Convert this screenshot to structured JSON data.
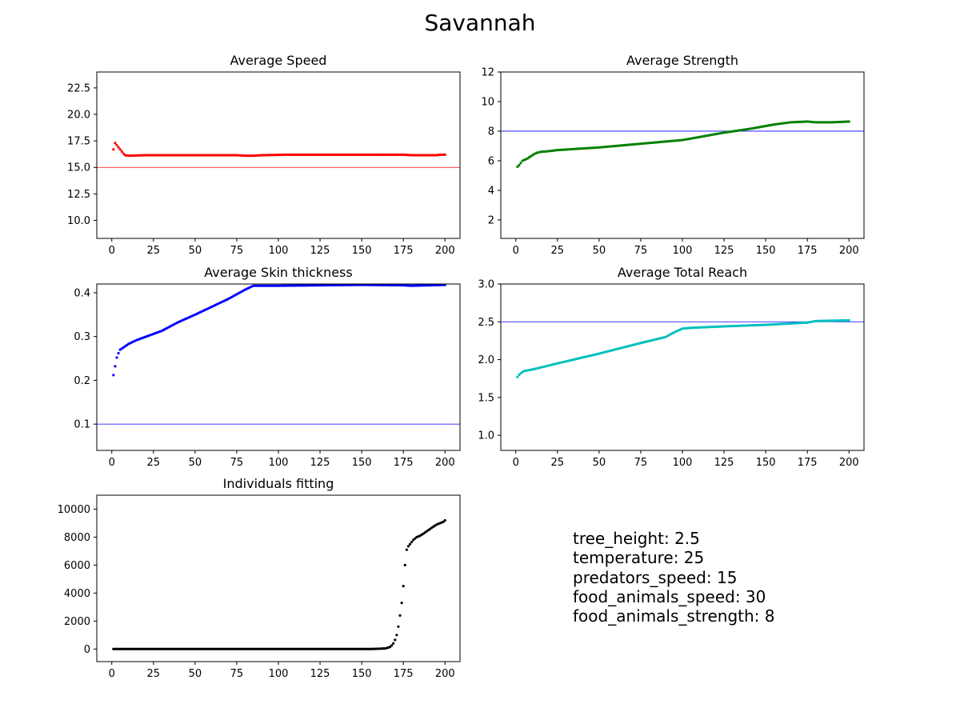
{
  "figure": {
    "title": "Savannah"
  },
  "params": [
    "tree_height: 2.5",
    "temperature: 25",
    "predators_speed: 15",
    "food_animals_speed: 30",
    "food_animals_strength: 8"
  ],
  "colors": {
    "speed": "#ff0000",
    "strength": "#008000",
    "skin": "#0000ff",
    "reach": "#00bfbf",
    "fitting": "#000000",
    "threshold_speed": "#ff0000",
    "threshold_other": "#0000ff"
  },
  "chart_data": [
    {
      "id": "speed",
      "type": "scatter",
      "title": "Average Speed",
      "xlim": [
        -9,
        209
      ],
      "ylim": [
        8.3,
        24.0
      ],
      "xticks": [
        0,
        25,
        50,
        75,
        100,
        125,
        150,
        175,
        200
      ],
      "yticks": [
        10.0,
        12.5,
        15.0,
        17.5,
        20.0,
        22.5
      ],
      "ytick_decimals": 1,
      "hline": 15.0,
      "series": [
        {
          "color": "#ff0000",
          "points": [
            [
              1,
              16.7
            ],
            [
              2,
              17.3
            ],
            [
              3,
              17.1
            ],
            [
              4,
              16.9
            ],
            [
              5,
              16.7
            ],
            [
              6,
              16.5
            ],
            [
              7,
              16.3
            ],
            [
              8,
              16.15
            ],
            [
              10,
              16.1
            ],
            [
              20,
              16.15
            ],
            [
              50,
              16.15
            ],
            [
              75,
              16.15
            ],
            [
              80,
              16.1
            ],
            [
              85,
              16.1
            ],
            [
              90,
              16.15
            ],
            [
              105,
              16.2
            ],
            [
              125,
              16.2
            ],
            [
              150,
              16.2
            ],
            [
              175,
              16.2
            ],
            [
              180,
              16.15
            ],
            [
              195,
              16.15
            ],
            [
              197,
              16.2
            ],
            [
              200,
              16.2
            ]
          ]
        }
      ]
    },
    {
      "id": "strength",
      "type": "scatter",
      "title": "Average Strength",
      "xlim": [
        -9,
        209
      ],
      "ylim": [
        0.75,
        12.0
      ],
      "xticks": [
        0,
        25,
        50,
        75,
        100,
        125,
        150,
        175,
        200
      ],
      "yticks": [
        2,
        4,
        6,
        8,
        10,
        12
      ],
      "ytick_decimals": 0,
      "hline": 8,
      "series": [
        {
          "color": "#008000",
          "points": [
            [
              1,
              5.6
            ],
            [
              2,
              5.7
            ],
            [
              3,
              5.85
            ],
            [
              4,
              6.0
            ],
            [
              5,
              6.05
            ],
            [
              7,
              6.15
            ],
            [
              9,
              6.3
            ],
            [
              11,
              6.45
            ],
            [
              13,
              6.55
            ],
            [
              15,
              6.6
            ],
            [
              20,
              6.65
            ],
            [
              25,
              6.72
            ],
            [
              50,
              6.9
            ],
            [
              75,
              7.15
            ],
            [
              90,
              7.3
            ],
            [
              100,
              7.4
            ],
            [
              110,
              7.6
            ],
            [
              125,
              7.9
            ],
            [
              140,
              8.15
            ],
            [
              155,
              8.45
            ],
            [
              165,
              8.6
            ],
            [
              175,
              8.65
            ],
            [
              180,
              8.6
            ],
            [
              190,
              8.6
            ],
            [
              200,
              8.65
            ]
          ]
        }
      ]
    },
    {
      "id": "skin",
      "type": "scatter",
      "title": "Average Skin thickness",
      "xlim": [
        -9,
        209
      ],
      "ylim": [
        0.04,
        0.42
      ],
      "xticks": [
        0,
        25,
        50,
        75,
        100,
        125,
        150,
        175,
        200
      ],
      "yticks": [
        0.1,
        0.2,
        0.3,
        0.4
      ],
      "ytick_decimals": 1,
      "hline": 0.1,
      "series": [
        {
          "color": "#0000ff",
          "points": [
            [
              1,
              0.212
            ],
            [
              2,
              0.232
            ],
            [
              3,
              0.252
            ],
            [
              4,
              0.262
            ],
            [
              5,
              0.27
            ],
            [
              7,
              0.275
            ],
            [
              10,
              0.283
            ],
            [
              15,
              0.292
            ],
            [
              20,
              0.299
            ],
            [
              30,
              0.313
            ],
            [
              40,
              0.333
            ],
            [
              50,
              0.35
            ],
            [
              60,
              0.368
            ],
            [
              70,
              0.386
            ],
            [
              80,
              0.407
            ],
            [
              85,
              0.416
            ],
            [
              100,
              0.416
            ],
            [
              150,
              0.418
            ],
            [
              175,
              0.417
            ],
            [
              180,
              0.416
            ],
            [
              200,
              0.418
            ]
          ]
        }
      ]
    },
    {
      "id": "reach",
      "type": "scatter",
      "title": "Average Total Reach",
      "xlim": [
        -9,
        209
      ],
      "ylim": [
        0.8,
        3.0
      ],
      "xticks": [
        0,
        25,
        50,
        75,
        100,
        125,
        150,
        175,
        200
      ],
      "yticks": [
        1.0,
        1.5,
        2.0,
        2.5,
        3.0
      ],
      "ytick_decimals": 1,
      "hline": 2.5,
      "series": [
        {
          "color": "#00bfbf",
          "points": [
            [
              1,
              1.77
            ],
            [
              2,
              1.8
            ],
            [
              3,
              1.82
            ],
            [
              5,
              1.85
            ],
            [
              10,
              1.87
            ],
            [
              25,
              1.95
            ],
            [
              50,
              2.08
            ],
            [
              75,
              2.22
            ],
            [
              90,
              2.3
            ],
            [
              95,
              2.36
            ],
            [
              100,
              2.41
            ],
            [
              105,
              2.42
            ],
            [
              125,
              2.44
            ],
            [
              150,
              2.46
            ],
            [
              175,
              2.49
            ],
            [
              180,
              2.51
            ],
            [
              200,
              2.52
            ]
          ]
        }
      ]
    },
    {
      "id": "fitting",
      "type": "scatter",
      "title": "Individuals fitting",
      "xlim": [
        -9,
        209
      ],
      "ylim": [
        -900,
        11000
      ],
      "xticks": [
        0,
        25,
        50,
        75,
        100,
        125,
        150,
        175,
        200
      ],
      "yticks": [
        0,
        2000,
        4000,
        6000,
        8000,
        10000
      ],
      "ytick_decimals": 0,
      "hline": null,
      "series": [
        {
          "color": "#000000",
          "points": [
            [
              1,
              0
            ],
            [
              155,
              0
            ],
            [
              158,
              10
            ],
            [
              160,
              20
            ],
            [
              162,
              30
            ],
            [
              164,
              40
            ],
            [
              166,
              100
            ],
            [
              167,
              150
            ],
            [
              168,
              250
            ],
            [
              169,
              400
            ],
            [
              170,
              650
            ],
            [
              171,
              1000
            ],
            [
              172,
              1600
            ],
            [
              173,
              2400
            ],
            [
              174,
              3300
            ],
            [
              175,
              4500
            ],
            [
              176,
              6000
            ],
            [
              177,
              7100
            ],
            [
              178,
              7350
            ],
            [
              179,
              7500
            ],
            [
              180,
              7650
            ],
            [
              181,
              7800
            ],
            [
              182,
              7900
            ],
            [
              183,
              8000
            ],
            [
              185,
              8100
            ],
            [
              187,
              8250
            ],
            [
              190,
              8500
            ],
            [
              193,
              8750
            ],
            [
              195,
              8900
            ],
            [
              197,
              9000
            ],
            [
              199,
              9100
            ],
            [
              200,
              9200
            ]
          ]
        }
      ]
    }
  ]
}
